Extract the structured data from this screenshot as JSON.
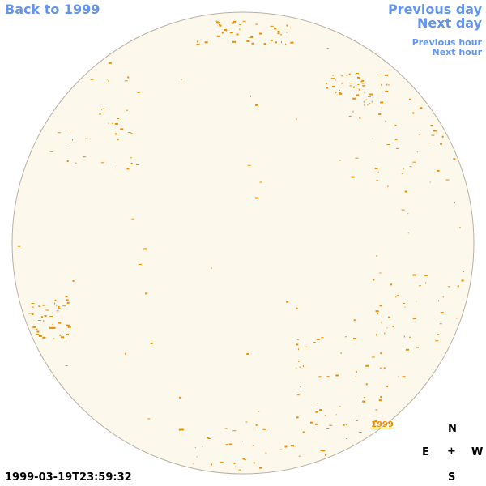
{
  "nav": {
    "back": "Back to 1999",
    "previous_day": "Previous day",
    "next_day": "Next day",
    "previous_hour": "Previous hour",
    "next_hour": "Next hour"
  },
  "disk": {
    "year_label": "1999"
  },
  "timestamp": "1999-03-19T23:59:32",
  "compass": {
    "north": "N",
    "east": "E",
    "center": "+",
    "west": "W",
    "south": "S"
  }
}
